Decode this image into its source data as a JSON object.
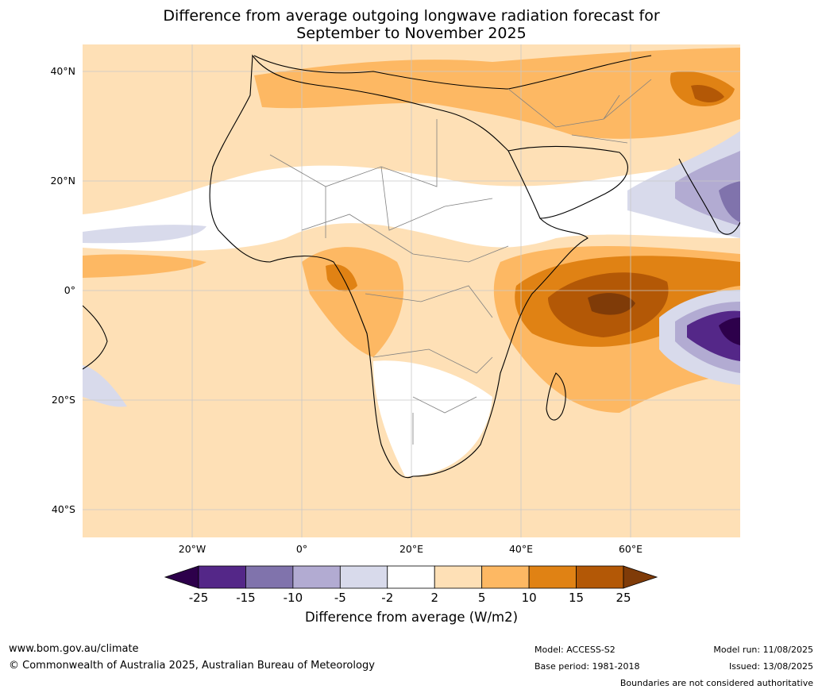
{
  "title": {
    "line1": "Difference from average outgoing longwave radiation forecast for",
    "line2": "September to November 2025"
  },
  "map": {
    "lat_labels": [
      "40°N",
      "20°N",
      "0°",
      "20°S",
      "40°S"
    ],
    "lon_labels": [
      "20°W",
      "0°",
      "20°E",
      "40°E",
      "60°E"
    ],
    "lat_values": [
      40,
      20,
      0,
      -20,
      -40
    ],
    "lon_values": [
      -20,
      0,
      20,
      40,
      60
    ],
    "lat_range": [
      -45,
      45
    ],
    "lon_range": [
      -40,
      80
    ]
  },
  "colorbar": {
    "label": "Difference from average (W/m2)",
    "ticks": [
      "-25",
      "-15",
      "-10",
      "-5",
      "-2",
      "2",
      "5",
      "10",
      "15",
      "25"
    ],
    "colors": [
      "#2d004b",
      "#542788",
      "#8073ac",
      "#b2abd2",
      "#d8daeb",
      "#ffffff",
      "#fee0b6",
      "#fdb863",
      "#e08214",
      "#b35806",
      "#7f3b08"
    ]
  },
  "footer": {
    "website": "www.bom.gov.au/climate",
    "copyright": "© Commonwealth of Australia 2025, Australian Bureau of Meteorology",
    "model": "Model: ACCESS-S2",
    "base_period": "Base period: 1981-2018",
    "model_run": "Model run: 11/08/2025",
    "issued": "Issued: 13/08/2025",
    "disclaimer": "Boundaries are not considered authoritative"
  }
}
